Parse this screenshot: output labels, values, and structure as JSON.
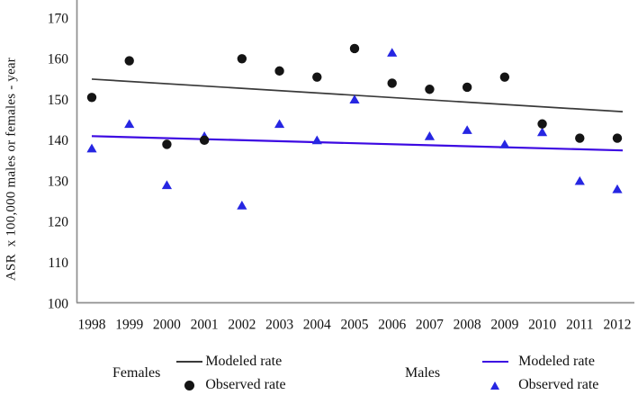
{
  "y_axis": {
    "title": "ASR  x 100,000 males or females - year",
    "ticks": [
      170,
      160,
      150,
      140,
      130,
      120,
      110,
      100
    ],
    "range": [
      100,
      170
    ]
  },
  "x_axis": {
    "ticks": [
      "1998",
      "1999",
      "2000",
      "2001",
      "2002",
      "2003",
      "2004",
      "2005",
      "2006",
      "2007",
      "2008",
      "2009",
      "2010",
      "2011",
      "2012"
    ]
  },
  "chart_data": {
    "type": "scatter",
    "title": "",
    "xlabel": "",
    "ylabel": "ASR  x 100,000 males or females - year",
    "x": [
      1998,
      1999,
      2000,
      2001,
      2002,
      2003,
      2004,
      2005,
      2006,
      2007,
      2008,
      2009,
      2010,
      2011,
      2012
    ],
    "ylim": [
      100,
      170
    ],
    "grid": false,
    "legend_position": "bottom",
    "series": [
      {
        "name": "Females modeled rate",
        "type": "line",
        "color": "#3a3a3a",
        "x": [
          1998,
          2012
        ],
        "values": [
          155,
          147
        ]
      },
      {
        "name": "Females observed rate",
        "type": "scatter",
        "marker": "circle",
        "color": "#141414",
        "values": [
          150.5,
          159.5,
          139,
          140,
          160,
          157,
          155.5,
          162.5,
          154,
          152.5,
          153,
          155.5,
          144,
          140.5,
          140.5
        ]
      },
      {
        "name": "Males modeled rate",
        "type": "line",
        "color": "#3c09e2",
        "x": [
          1998,
          2012
        ],
        "values": [
          141,
          137.5
        ]
      },
      {
        "name": "Males observed rate",
        "type": "scatter",
        "marker": "triangle",
        "color": "#2626e2",
        "values": [
          138,
          144,
          129,
          141,
          124,
          144,
          140,
          150,
          161.5,
          141,
          142.5,
          139,
          142,
          130,
          128
        ]
      }
    ]
  },
  "legend": {
    "females": {
      "group_label": "Females",
      "modeled_label": "Modeled rate",
      "observed_label": "Observed rate",
      "modeled_color": "#3a3a3a",
      "observed_color": "#141414"
    },
    "males": {
      "group_label": "Males",
      "modeled_label": "Modeled rate",
      "observed_label": "Observed rate",
      "modeled_color": "#3c09e2",
      "observed_color": "#2626e2"
    }
  },
  "colors": {
    "axis": "#8f8f8f",
    "text": "#111111"
  }
}
